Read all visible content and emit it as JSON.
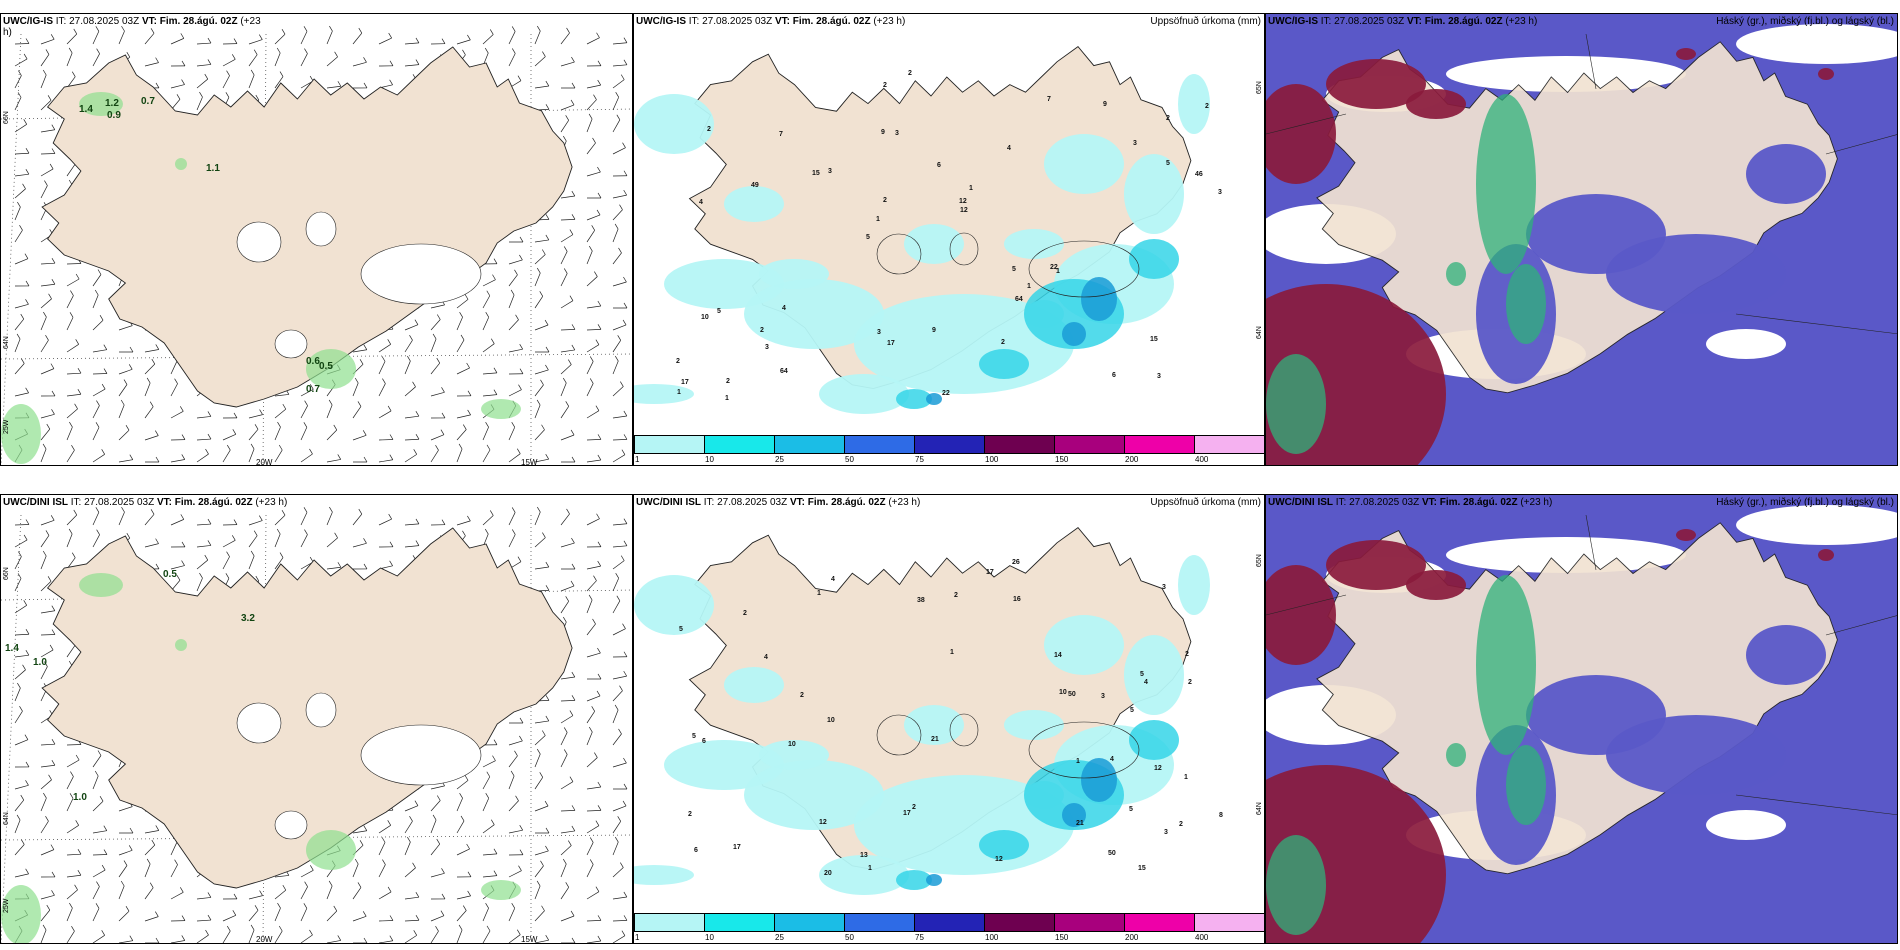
{
  "panels": [
    {
      "title_model": "UWC/IG-IS",
      "title_it": "IT: 27.08.2025 03Z",
      "title_vt": "VT: Fim. 28.ágú. 02Z",
      "title_lead": "(+23",
      "title_lead2": "h)",
      "title_right": "",
      "lat_labels": [
        "66N",
        "64N",
        "25W"
      ],
      "lon_labels": [
        "20W",
        "15W"
      ],
      "value_labels": [
        "1.4",
        "1.2",
        "0.9",
        "0.7",
        "1.1",
        "0.6",
        "0.5",
        "0.7"
      ]
    },
    {
      "title_model": "UWC/IG-IS",
      "title_it": "IT: 27.08.2025 03Z",
      "title_vt": "VT: Fim. 28.ágú. 02Z",
      "title_lead": "(+23 h)",
      "title_right": "Uppsöfnuð úrkoma (mm)",
      "lat_labels": [
        "65N",
        "64N"
      ],
      "value_labels": [
        "3",
        "4",
        "2",
        "5",
        "4",
        "2",
        "9",
        "6",
        "5",
        "3",
        "2",
        "3",
        "3",
        "1",
        "1",
        "2",
        "2",
        "3",
        "5",
        "5",
        "1",
        "3",
        "2",
        "7",
        "7",
        "4",
        "6",
        "15",
        "22",
        "22",
        "15",
        "49",
        "64",
        "64",
        "46",
        "12",
        "17",
        "17",
        "12",
        "10",
        "3",
        "2",
        "1",
        "2",
        "2",
        "1",
        "1",
        "9",
        "9",
        "2"
      ]
    },
    {
      "title_model": "UWC/IG-IS",
      "title_it": "IT: 27.08.2025 03Z",
      "title_vt": "VT: Fim. 28.ágú. 02Z",
      "title_lead": "(+23 h)",
      "title_right": "Háský (gr.), miðský (fj.bl.) og lágský (bl.)"
    },
    {
      "title_model": "UWC/DINI ISL",
      "title_it": "IT: 27.08.2025 03Z",
      "title_vt": "VT: Fim. 28.ágú. 02Z",
      "title_lead": "(+23 h)",
      "title_right": "",
      "lat_labels": [
        "66N",
        "64N",
        "25W"
      ],
      "lon_labels": [
        "20W",
        "15W"
      ],
      "value_labels": [
        "0.5",
        "3.2",
        "1.4",
        "1.0",
        "1.0"
      ]
    },
    {
      "title_model": "UWC/DINI ISL",
      "title_it": "IT: 27.08.2025 03Z",
      "title_vt": "VT: Fim. 28.ágú. 02Z",
      "title_lead": "(+23 h)",
      "title_right": "Uppsöfnuð úrkoma (mm)",
      "lat_labels": [
        "65N",
        "64N"
      ],
      "value_labels": [
        "5",
        "2",
        "2",
        "1",
        "6",
        "4",
        "5",
        "12",
        "3",
        "4",
        "2",
        "5",
        "5",
        "1",
        "2",
        "2",
        "3",
        "1",
        "2",
        "4",
        "5",
        "6",
        "12",
        "10",
        "13",
        "17",
        "17",
        "16",
        "14",
        "8",
        "10",
        "21",
        "20",
        "21",
        "12",
        "50",
        "50",
        "38",
        "15",
        "10",
        "4",
        "3",
        "2",
        "2",
        "1",
        "1",
        "17",
        "26"
      ]
    },
    {
      "title_model": "UWC/DINI ISL",
      "title_it": "IT: 27.08.2025 03Z",
      "title_vt": "VT: Fim. 28.ágú. 02Z",
      "title_lead": "(+23 h)",
      "title_right": "Háský (gr.), miðský (fj.bl.) og lágský (bl.)"
    }
  ],
  "colorbar": {
    "colors": [
      "#b5f5f5",
      "#18e8ea",
      "#1bbde6",
      "#2e6be6",
      "#2323b5",
      "#6e0050",
      "#a8007d",
      "#ee00a8",
      "#f5b1f0"
    ],
    "labels": [
      "1",
      "10",
      "25",
      "50",
      "75",
      "100",
      "150",
      "200",
      "400"
    ]
  },
  "colors": {
    "land": "#f1e2d2",
    "precip_light": "#b5f5f5",
    "precip_mid": "#35d5e8",
    "precip_dark": "#1a9bd6",
    "cloud_high": "#2fb27a",
    "cloud_mid": "#8a1a3c",
    "cloud_low": "#5a58c8"
  }
}
